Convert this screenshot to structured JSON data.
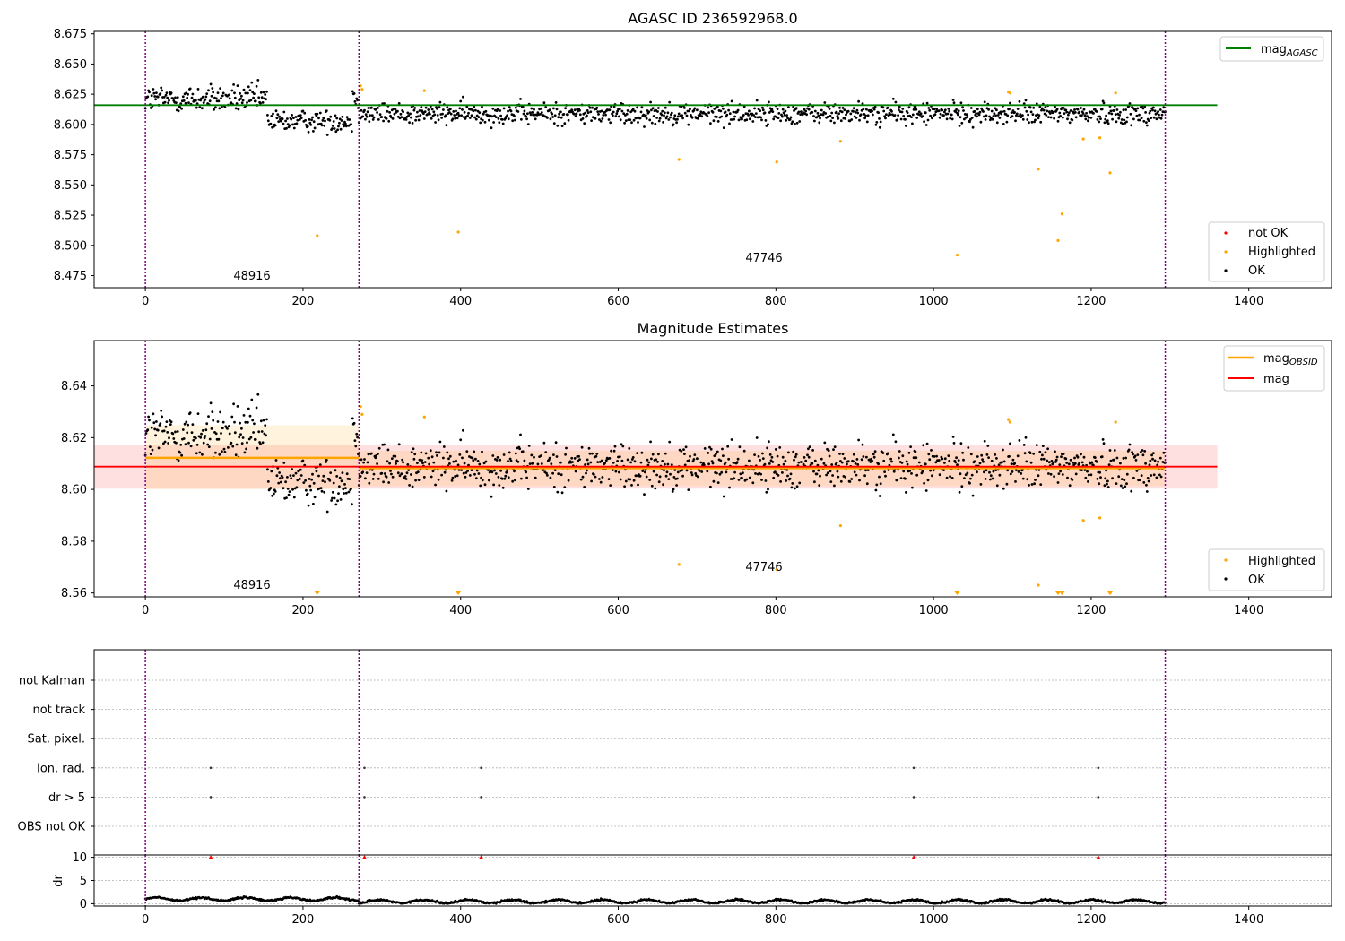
{
  "figure_title": "AGASC ID 236592968.0",
  "chart_data": [
    {
      "type": "scatter",
      "title": "AGASC ID 236592968.0",
      "xlabel": "",
      "ylabel": "",
      "xlim": [
        -65,
        1505
      ],
      "ylim": [
        8.465,
        8.677
      ],
      "xticks": [
        0,
        200,
        400,
        600,
        800,
        1000,
        1200,
        1400
      ],
      "yticks": [
        8.475,
        8.5,
        8.525,
        8.55,
        8.575,
        8.6,
        8.625,
        8.65,
        8.675
      ],
      "ytick_labels": [
        "8.475",
        "8.500",
        "8.525",
        "8.550",
        "8.575",
        "8.600",
        "8.625",
        "8.650",
        "8.675"
      ],
      "obsid_boundaries": [
        0,
        271,
        1294
      ],
      "obsid_labels": [
        {
          "text": "48916",
          "x": 135,
          "y": 8.472
        },
        {
          "text": "47746",
          "x": 783,
          "y": 8.487
        }
      ],
      "reference_lines": [
        {
          "name": "mag",
          "subscript": "AGASC",
          "value": 8.616,
          "xrange": [
            -65,
            1360
          ],
          "color": "#008000"
        }
      ],
      "segments": [
        {
          "start": 0,
          "end": 155,
          "mean": 8.621,
          "amp": 0.009
        },
        {
          "start": 155,
          "end": 263,
          "mean": 8.603,
          "amp": 0.007
        },
        {
          "start": 263,
          "end": 271,
          "mean": 8.622,
          "amp": 0.007
        },
        {
          "start": 271,
          "end": 1294,
          "mean": 8.609,
          "amp": 0.007
        }
      ],
      "highlighted": [
        {
          "x": 218,
          "y": 8.508
        },
        {
          "x": 273,
          "y": 8.632
        },
        {
          "x": 275,
          "y": 8.629
        },
        {
          "x": 354,
          "y": 8.628
        },
        {
          "x": 397,
          "y": 8.511
        },
        {
          "x": 677,
          "y": 8.571
        },
        {
          "x": 801,
          "y": 8.569
        },
        {
          "x": 882,
          "y": 8.586
        },
        {
          "x": 1030,
          "y": 8.492
        },
        {
          "x": 1095,
          "y": 8.627
        },
        {
          "x": 1097,
          "y": 8.626
        },
        {
          "x": 1133,
          "y": 8.563
        },
        {
          "x": 1158,
          "y": 8.504
        },
        {
          "x": 1163,
          "y": 8.526
        },
        {
          "x": 1190,
          "y": 8.588
        },
        {
          "x": 1211,
          "y": 8.589
        },
        {
          "x": 1224,
          "y": 8.56
        },
        {
          "x": 1231,
          "y": 8.626
        }
      ],
      "legends": [
        {
          "position": "upper right",
          "items": [
            {
              "label": "mag",
              "subscript": "AGASC",
              "kind": "line",
              "color": "#008000"
            }
          ]
        },
        {
          "position": "lower right",
          "items": [
            {
              "label": "not OK",
              "kind": "dot",
              "color": "#ff0000"
            },
            {
              "label": "Highlighted",
              "kind": "dot",
              "color": "#ffa500"
            },
            {
              "label": "OK",
              "kind": "dot",
              "color": "#000000"
            }
          ]
        }
      ]
    },
    {
      "type": "scatter",
      "title": "Magnitude Estimates",
      "xlabel": "",
      "ylabel": "",
      "xlim": [
        -65,
        1505
      ],
      "ylim": [
        8.5585,
        8.6575
      ],
      "xticks": [
        0,
        200,
        400,
        600,
        800,
        1000,
        1200,
        1400
      ],
      "yticks": [
        8.56,
        8.58,
        8.6,
        8.62,
        8.64
      ],
      "ytick_labels": [
        "8.56",
        "8.58",
        "8.60",
        "8.62",
        "8.64"
      ],
      "obsid_boundaries": [
        0,
        271,
        1294
      ],
      "obsid_labels": [
        {
          "text": "48916",
          "x": 135,
          "y": 8.5625
        },
        {
          "text": "47746",
          "x": 783,
          "y": 8.5705
        }
      ],
      "mag": {
        "name": "mag",
        "value": 8.6088,
        "band": [
          8.6003,
          8.6173
        ],
        "xrange": [
          -65,
          1360
        ],
        "color": "#ff0000"
      },
      "mag_obsid": [
        {
          "name": "mag",
          "subscript": "OBSID",
          "start": 0,
          "end": 271,
          "value": 8.6122,
          "band": [
            8.6001,
            8.6248
          ]
        },
        {
          "name": "mag",
          "subscript": "OBSID",
          "start": 271,
          "end": 1294,
          "value": 8.6082,
          "band": [
            8.6013,
            8.6149
          ]
        }
      ],
      "limit_markers_x": [
        218,
        397,
        1030,
        1158,
        1163,
        1224
      ],
      "legends": [
        {
          "position": "upper right",
          "items": [
            {
              "label": "mag",
              "subscript": "OBSID",
              "kind": "line",
              "color": "#ffa500"
            },
            {
              "label": "mag",
              "kind": "line",
              "color": "#ff0000"
            }
          ]
        },
        {
          "position": "lower right",
          "items": [
            {
              "label": "Highlighted",
              "kind": "dot",
              "color": "#ffa500"
            },
            {
              "label": "OK",
              "kind": "dot",
              "color": "#000000"
            }
          ]
        }
      ]
    },
    {
      "type": "scatter",
      "title": "",
      "xlabel": "",
      "ylabel": "",
      "xlim": [
        -65,
        1505
      ],
      "xticks": [
        0,
        200,
        400,
        600,
        800,
        1000,
        1200,
        1400
      ],
      "flag_rows": [
        "not Kalman",
        "not track",
        "Sat. pixel.",
        "Ion. rad.",
        "dr > 5",
        "OBS not OK"
      ],
      "flagged_x": {
        "Ion. rad.": [
          83,
          278,
          426,
          975,
          1209
        ],
        "dr > 5": [
          83,
          278,
          426,
          975,
          1209
        ]
      },
      "obsid_boundaries": [
        0,
        271,
        1294
      ]
    },
    {
      "type": "line",
      "title": "",
      "xlabel": "",
      "ylabel": "dr",
      "xlim": [
        -65,
        1505
      ],
      "ylim": [
        -0.5,
        10.5
      ],
      "yticks": [
        0,
        5,
        10
      ],
      "xticks": [
        0,
        200,
        400,
        600,
        800,
        1000,
        1200,
        1400
      ],
      "dr_high_x": [
        83,
        278,
        426,
        975,
        1209
      ],
      "dr_high_value": 10,
      "segments": [
        {
          "start": 0,
          "end": 271,
          "mean": 1.0
        },
        {
          "start": 271,
          "end": 1294,
          "mean": 0.5
        }
      ],
      "obsid_boundaries": [
        0,
        271,
        1294
      ]
    }
  ]
}
